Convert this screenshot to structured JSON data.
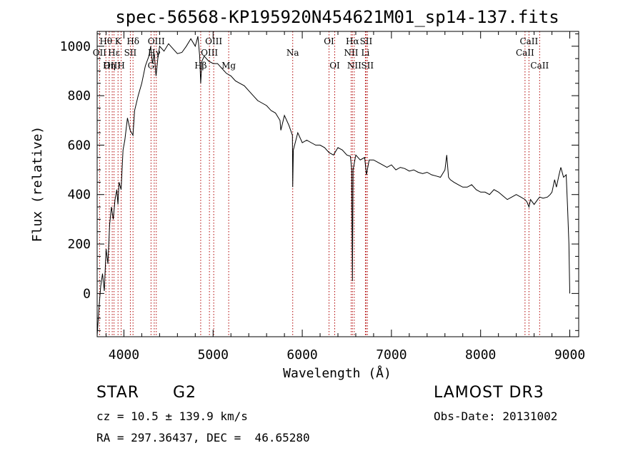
{
  "chart_data": {
    "type": "line",
    "title": "spec-56568-KP195920N454621M01_sp14-137.fits",
    "xlabel": "Wavelength (Å)",
    "ylabel": "Flux (relative)",
    "xlim": [
      3700,
      9100
    ],
    "ylim": [
      -175,
      1060
    ],
    "xticks": [
      4000,
      5000,
      6000,
      7000,
      8000,
      9000
    ],
    "yticks": [
      0,
      200,
      400,
      600,
      800,
      1000
    ],
    "grid": false,
    "series": [
      {
        "name": "spectrum",
        "x": [
          3700,
          3720,
          3740,
          3760,
          3780,
          3800,
          3820,
          3840,
          3860,
          3880,
          3900,
          3920,
          3933,
          3945,
          3968,
          3990,
          4010,
          4040,
          4070,
          4101,
          4120,
          4160,
          4200,
          4240,
          4280,
          4300,
          4320,
          4340,
          4360,
          4380,
          4400,
          4450,
          4500,
          4550,
          4600,
          4650,
          4700,
          4750,
          4800,
          4830,
          4850,
          4861,
          4875,
          4900,
          4950,
          5000,
          5050,
          5100,
          5150,
          5200,
          5250,
          5300,
          5350,
          5400,
          5450,
          5500,
          5550,
          5600,
          5650,
          5700,
          5750,
          5760,
          5800,
          5850,
          5890,
          5893,
          5900,
          5950,
          6000,
          6050,
          6100,
          6150,
          6200,
          6250,
          6300,
          6350,
          6400,
          6450,
          6500,
          6540,
          6555,
          6563,
          6570,
          6600,
          6650,
          6700,
          6720,
          6750,
          6800,
          6850,
          6900,
          6950,
          7000,
          7050,
          7100,
          7150,
          7200,
          7250,
          7300,
          7350,
          7400,
          7450,
          7500,
          7550,
          7600,
          7620,
          7640,
          7660,
          7700,
          7750,
          7800,
          7850,
          7900,
          7950,
          8000,
          8050,
          8100,
          8150,
          8200,
          8250,
          8300,
          8350,
          8400,
          8450,
          8498,
          8520,
          8542,
          8560,
          8600,
          8640,
          8662,
          8700,
          8750,
          8780,
          8800,
          8830,
          8850,
          8880,
          8900,
          8930,
          8960,
          8975,
          8990,
          9000
        ],
        "y": [
          -170,
          -60,
          30,
          80,
          10,
          180,
          120,
          280,
          350,
          300,
          380,
          420,
          360,
          450,
          420,
          580,
          620,
          710,
          660,
          640,
          740,
          800,
          850,
          920,
          960,
          1000,
          930,
          970,
          880,
          950,
          1000,
          980,
          1010,
          990,
          970,
          975,
          1000,
          1030,
          1000,
          1040,
          960,
          850,
          940,
          960,
          940,
          930,
          930,
          910,
          890,
          880,
          860,
          850,
          840,
          820,
          800,
          780,
          770,
          760,
          740,
          730,
          700,
          660,
          720,
          680,
          640,
          430,
          580,
          650,
          610,
          620,
          610,
          600,
          600,
          590,
          570,
          560,
          590,
          580,
          560,
          555,
          500,
          50,
          500,
          560,
          540,
          550,
          480,
          540,
          540,
          530,
          520,
          510,
          520,
          500,
          510,
          505,
          495,
          500,
          490,
          485,
          490,
          480,
          475,
          470,
          500,
          560,
          470,
          460,
          450,
          440,
          430,
          430,
          440,
          420,
          410,
          410,
          400,
          420,
          410,
          395,
          380,
          390,
          400,
          390,
          380,
          370,
          350,
          380,
          360,
          380,
          390,
          385,
          390,
          400,
          410,
          460,
          430,
          480,
          510,
          470,
          480,
          350,
          200,
          0
        ]
      }
    ],
    "lines_label": "emission/absorption line markers",
    "lines": [
      {
        "name": "Hθ",
        "wl": 3798,
        "row": 1
      },
      {
        "name": "OII",
        "wl": 3727,
        "row": 2
      },
      {
        "name": "OIII",
        "wl": 3869,
        "row": 3
      },
      {
        "name": "K",
        "wl": 3934,
        "row": 1
      },
      {
        "name": "H",
        "wl": 3969,
        "row": 3
      },
      {
        "name": "Hε",
        "wl": 3889,
        "row": 2
      },
      {
        "name": "Hη",
        "wl": 3835,
        "row": 3
      },
      {
        "name": "SII",
        "wl": 4072,
        "row": 2
      },
      {
        "name": "Hδ",
        "wl": 4102,
        "row": 1
      },
      {
        "name": "OIII",
        "wl": 4363,
        "row": 1
      },
      {
        "name": "Hγ",
        "wl": 4340,
        "row": 2
      },
      {
        "name": "G",
        "wl": 4304,
        "row": 3
      },
      {
        "name": "Hβ",
        "wl": 4861,
        "row": 3
      },
      {
        "name": "OIII",
        "wl": 5007,
        "row": 1
      },
      {
        "name": "OIII",
        "wl": 4959,
        "row": 2
      },
      {
        "name": "Mg",
        "wl": 5175,
        "row": 3
      },
      {
        "name": "Na",
        "wl": 5893,
        "row": 2
      },
      {
        "name": "OI",
        "wl": 6300,
        "row": 1
      },
      {
        "name": "OI",
        "wl": 6364,
        "row": 3
      },
      {
        "name": "Hα",
        "wl": 6563,
        "row": 1
      },
      {
        "name": "NII",
        "wl": 6548,
        "row": 2
      },
      {
        "name": "NII",
        "wl": 6583,
        "row": 3
      },
      {
        "name": "SII",
        "wl": 6716,
        "row": 1
      },
      {
        "name": "Li",
        "wl": 6708,
        "row": 2
      },
      {
        "name": "SII",
        "wl": 6731,
        "row": 3
      },
      {
        "name": "CaII",
        "wl": 8542,
        "row": 1
      },
      {
        "name": "CaII",
        "wl": 8498,
        "row": 2
      },
      {
        "name": "CaII",
        "wl": 8662,
        "row": 3
      }
    ]
  },
  "info": {
    "class": "STAR",
    "subclass": "G2",
    "survey": "LAMOST DR3",
    "cz": "cz = 10.5 ± 139.9 km/s",
    "obs_date": "Obs-Date: 20131002",
    "coords": "RA = 297.36437, DEC =  46.65280"
  },
  "colors": {
    "spectrum": "#000000",
    "line_marker": "#b00000"
  }
}
